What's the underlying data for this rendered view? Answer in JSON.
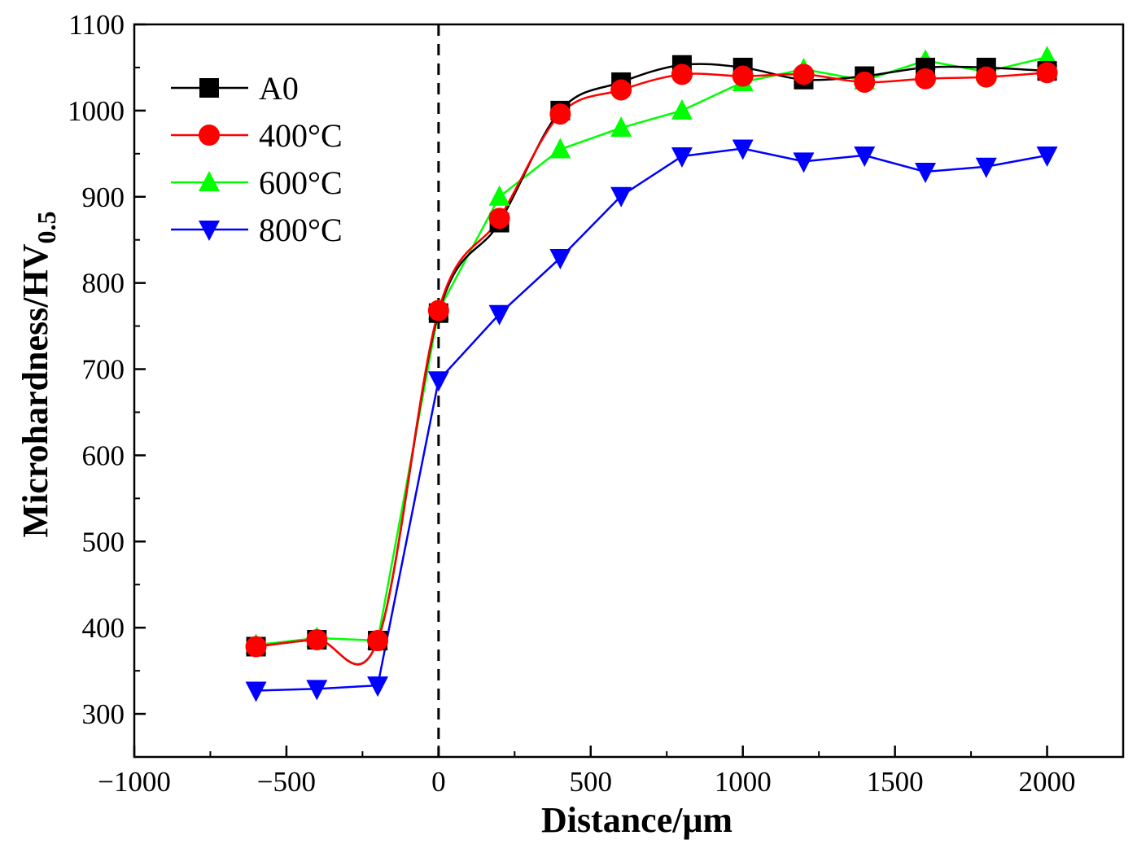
{
  "chart_data": {
    "type": "line",
    "title": "",
    "xlabel": "Distance/μm",
    "ylabel_main": "Microhardness/HV",
    "ylabel_sub": "0.5",
    "xlim": [
      -1000,
      2250
    ],
    "ylim": [
      250,
      1100
    ],
    "x_ticks": [
      -1000,
      -500,
      0,
      500,
      1000,
      1500,
      2000
    ],
    "x_tick_labels": [
      "−1000",
      "−500",
      "0",
      "500",
      "1000",
      "1500",
      "2000"
    ],
    "y_ticks": [
      300,
      400,
      500,
      600,
      700,
      800,
      900,
      1000,
      1100
    ],
    "y_tick_labels": [
      "300",
      "400",
      "500",
      "600",
      "700",
      "800",
      "900",
      "1000",
      "1100"
    ],
    "reference_line_x": 0,
    "legend_position": "top-left",
    "x": [
      -600,
      -400,
      -200,
      0,
      200,
      400,
      600,
      800,
      1000,
      1200,
      1400,
      1600,
      1800,
      2000
    ],
    "series": [
      {
        "name": "A0",
        "color": "#000000",
        "marker": "square",
        "values": [
          378,
          386,
          385,
          765,
          870,
          1000,
          1033,
          1053,
          1050,
          1036,
          1040,
          1050,
          1050,
          1046
        ]
      },
      {
        "name": "400°C",
        "color": "#ff0000",
        "marker": "circle",
        "values": [
          378,
          386,
          385,
          768,
          875,
          996,
          1024,
          1042,
          1040,
          1042,
          1033,
          1037,
          1039,
          1044
        ]
      },
      {
        "name": "600°C",
        "color": "#00ff00",
        "marker": "triangle-up",
        "values": [
          380,
          388,
          385,
          768,
          900,
          955,
          980,
          1000,
          1033,
          1048,
          1035,
          1058,
          1045,
          1062
        ]
      },
      {
        "name": "800°C",
        "color": "#0000ff",
        "marker": "triangle-down",
        "values": [
          327,
          329,
          333,
          687,
          764,
          829,
          901,
          947,
          956,
          941,
          948,
          929,
          935,
          948
        ]
      }
    ]
  }
}
